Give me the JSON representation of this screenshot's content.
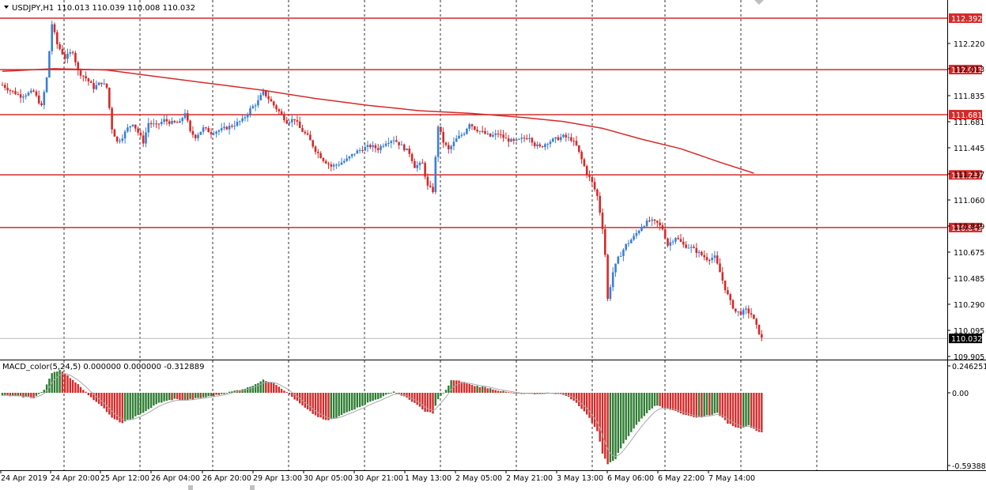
{
  "header": {
    "symbol": "USDJPY,H1",
    "ohlc": "110.013 110.039 110.008 110.032"
  },
  "macd_header": "MACD_color(5,24,5) 0.000000 0.000000 -0.312889",
  "colors": {
    "bull": "#3a7fd5",
    "bear": "#d42a2a",
    "level_line": "#d42a2a",
    "ma_line": "#d42a2a",
    "histogram_up": "#2e7d32",
    "histogram_down": "#d42a2a",
    "signal_line": "#a8a8a8",
    "grid": "#000000"
  },
  "chart_data": [
    {
      "type": "candlestick",
      "title": "USDJPY,H1",
      "ylim": [
        109.905,
        112.45
      ],
      "price_ticks": [
        "112.220",
        "112.013",
        "111.835",
        "111.681",
        "111.445",
        "111.237",
        "111.060",
        "110.849",
        "110.675",
        "110.485",
        "110.290",
        "110.095",
        "109.905"
      ],
      "horizontal_levels": [
        {
          "value": 112.392,
          "label": "112.392"
        },
        {
          "value": 112.013,
          "label": "112.013"
        },
        {
          "value": 111.681,
          "label": "111.681"
        },
        {
          "value": 111.237,
          "label": "111.237"
        },
        {
          "value": 110.849,
          "label": "110.849"
        }
      ],
      "current_price": {
        "value": 110.032,
        "label": "110.032"
      },
      "time_labels": [
        "24 Apr 2019",
        "24 Apr 20:00",
        "25 Apr 12:00",
        "26 Apr 04:00",
        "26 Apr 20:00",
        "29 Apr 13:00",
        "30 Apr 05:00",
        "30 Apr 21:00",
        "1 May 13:00",
        "2 May 05:00",
        "2 May 21:00",
        "3 May 13:00",
        "6 May 06:00",
        "6 May 22:00",
        "7 May 14:00"
      ],
      "price_anchors": [
        [
          0,
          111.9
        ],
        [
          3,
          111.86
        ],
        [
          7,
          111.82
        ],
        [
          12,
          111.85
        ],
        [
          15,
          111.74
        ],
        [
          17,
          111.95
        ],
        [
          19,
          112.35
        ],
        [
          21,
          112.2
        ],
        [
          24,
          112.1
        ],
        [
          27,
          112.15
        ],
        [
          29,
          112.0
        ],
        [
          32,
          111.95
        ],
        [
          35,
          111.88
        ],
        [
          38,
          111.92
        ],
        [
          40,
          111.88
        ],
        [
          42,
          111.58
        ],
        [
          44,
          111.48
        ],
        [
          46,
          111.52
        ],
        [
          48,
          111.58
        ],
        [
          50,
          111.62
        ],
        [
          52,
          111.55
        ],
        [
          54,
          111.48
        ],
        [
          56,
          111.62
        ],
        [
          59,
          111.6
        ],
        [
          62,
          111.64
        ],
        [
          65,
          111.62
        ],
        [
          68,
          111.62
        ],
        [
          70,
          111.7
        ],
        [
          72,
          111.55
        ],
        [
          74,
          111.52
        ],
        [
          77,
          111.58
        ],
        [
          80,
          111.55
        ],
        [
          84,
          111.57
        ],
        [
          88,
          111.6
        ],
        [
          92,
          111.64
        ],
        [
          95,
          111.72
        ],
        [
          98,
          111.78
        ],
        [
          100,
          111.85
        ],
        [
          102,
          111.8
        ],
        [
          104,
          111.75
        ],
        [
          107,
          111.68
        ],
        [
          109,
          111.63
        ],
        [
          112,
          111.65
        ],
        [
          114,
          111.58
        ],
        [
          117,
          111.52
        ],
        [
          120,
          111.42
        ],
        [
          123,
          111.35
        ],
        [
          126,
          111.3
        ],
        [
          129,
          111.32
        ],
        [
          132,
          111.35
        ],
        [
          135,
          111.4
        ],
        [
          138,
          111.43
        ],
        [
          141,
          111.45
        ],
        [
          144,
          111.43
        ],
        [
          147,
          111.48
        ],
        [
          150,
          111.5
        ],
        [
          153,
          111.45
        ],
        [
          156,
          111.4
        ],
        [
          158,
          111.3
        ],
        [
          161,
          111.32
        ],
        [
          163,
          111.15
        ],
        [
          165,
          111.12
        ],
        [
          167,
          111.6
        ],
        [
          169,
          111.48
        ],
        [
          171,
          111.42
        ],
        [
          174,
          111.5
        ],
        [
          177,
          111.55
        ],
        [
          179,
          111.62
        ],
        [
          181,
          111.58
        ],
        [
          184,
          111.55
        ],
        [
          187,
          111.52
        ],
        [
          190,
          111.54
        ],
        [
          193,
          111.5
        ],
        [
          196,
          111.48
        ],
        [
          199,
          111.5
        ],
        [
          202,
          111.52
        ],
        [
          204,
          111.46
        ],
        [
          206,
          111.44
        ],
        [
          209,
          111.48
        ],
        [
          212,
          111.5
        ],
        [
          215,
          111.52
        ],
        [
          218,
          111.5
        ],
        [
          220,
          111.45
        ],
        [
          222,
          111.35
        ],
        [
          224,
          111.25
        ],
        [
          226,
          111.18
        ],
        [
          228,
          111.08
        ],
        [
          230,
          110.85
        ],
        [
          231,
          110.65
        ],
        [
          232,
          110.32
        ],
        [
          234,
          110.52
        ],
        [
          236,
          110.62
        ],
        [
          239,
          110.72
        ],
        [
          242,
          110.78
        ],
        [
          245,
          110.86
        ],
        [
          248,
          110.9
        ],
        [
          251,
          110.88
        ],
        [
          253,
          110.84
        ],
        [
          255,
          110.72
        ],
        [
          258,
          110.78
        ],
        [
          261,
          110.72
        ],
        [
          264,
          110.7
        ],
        [
          267,
          110.66
        ],
        [
          270,
          110.62
        ],
        [
          273,
          110.63
        ],
        [
          275,
          110.52
        ],
        [
          277,
          110.4
        ],
        [
          279,
          110.3
        ],
        [
          281,
          110.23
        ],
        [
          283,
          110.22
        ],
        [
          285,
          110.24
        ],
        [
          287,
          110.21
        ],
        [
          289,
          110.12
        ],
        [
          291,
          110.03
        ]
      ],
      "moving_average": [
        [
          0,
          112.0
        ],
        [
          20,
          112.02
        ],
        [
          40,
          112.01
        ],
        [
          60,
          111.96
        ],
        [
          80,
          111.91
        ],
        [
          100,
          111.86
        ],
        [
          120,
          111.8
        ],
        [
          140,
          111.75
        ],
        [
          160,
          111.71
        ],
        [
          180,
          111.69
        ],
        [
          200,
          111.66
        ],
        [
          215,
          111.63
        ],
        [
          230,
          111.58
        ],
        [
          245,
          111.5
        ],
        [
          260,
          111.43
        ],
        [
          275,
          111.33
        ],
        [
          288,
          111.25
        ]
      ],
      "macd": {
        "range": [
          -0.593882,
          0.246251
        ],
        "ticks": [
          "0.246251",
          "0.00",
          "-0.593882"
        ],
        "anchors": [
          [
            0,
            -0.02
          ],
          [
            12,
            -0.04
          ],
          [
            16,
            0.02
          ],
          [
            19,
            0.16
          ],
          [
            22,
            0.18
          ],
          [
            26,
            0.12
          ],
          [
            30,
            0.05
          ],
          [
            34,
            -0.04
          ],
          [
            38,
            -0.1
          ],
          [
            42,
            -0.2
          ],
          [
            46,
            -0.24
          ],
          [
            52,
            -0.18
          ],
          [
            60,
            -0.08
          ],
          [
            66,
            -0.05
          ],
          [
            70,
            -0.06
          ],
          [
            76,
            -0.04
          ],
          [
            82,
            -0.02
          ],
          [
            88,
            0.01
          ],
          [
            94,
            0.04
          ],
          [
            100,
            0.1
          ],
          [
            104,
            0.08
          ],
          [
            108,
            0.02
          ],
          [
            112,
            -0.05
          ],
          [
            116,
            -0.12
          ],
          [
            120,
            -0.18
          ],
          [
            124,
            -0.22
          ],
          [
            128,
            -0.2
          ],
          [
            132,
            -0.15
          ],
          [
            136,
            -0.12
          ],
          [
            140,
            -0.08
          ],
          [
            146,
            -0.03
          ],
          [
            150,
            0.01
          ],
          [
            154,
            -0.03
          ],
          [
            158,
            -0.08
          ],
          [
            162,
            -0.15
          ],
          [
            165,
            -0.16
          ],
          [
            167,
            -0.05
          ],
          [
            170,
            0.02
          ],
          [
            172,
            0.1
          ],
          [
            176,
            0.09
          ],
          [
            180,
            0.06
          ],
          [
            186,
            0.04
          ],
          [
            192,
            0.01
          ],
          [
            198,
            -0.01
          ],
          [
            204,
            -0.01
          ],
          [
            210,
            0.0
          ],
          [
            216,
            -0.02
          ],
          [
            220,
            -0.08
          ],
          [
            224,
            -0.17
          ],
          [
            228,
            -0.3
          ],
          [
            230,
            -0.48
          ],
          [
            232,
            -0.56
          ],
          [
            235,
            -0.52
          ],
          [
            238,
            -0.4
          ],
          [
            242,
            -0.28
          ],
          [
            246,
            -0.18
          ],
          [
            250,
            -0.1
          ],
          [
            254,
            -0.12
          ],
          [
            258,
            -0.14
          ],
          [
            262,
            -0.18
          ],
          [
            266,
            -0.2
          ],
          [
            270,
            -0.18
          ],
          [
            274,
            -0.16
          ],
          [
            278,
            -0.24
          ],
          [
            282,
            -0.28
          ],
          [
            286,
            -0.26
          ],
          [
            290,
            -0.31
          ]
        ]
      }
    }
  ]
}
